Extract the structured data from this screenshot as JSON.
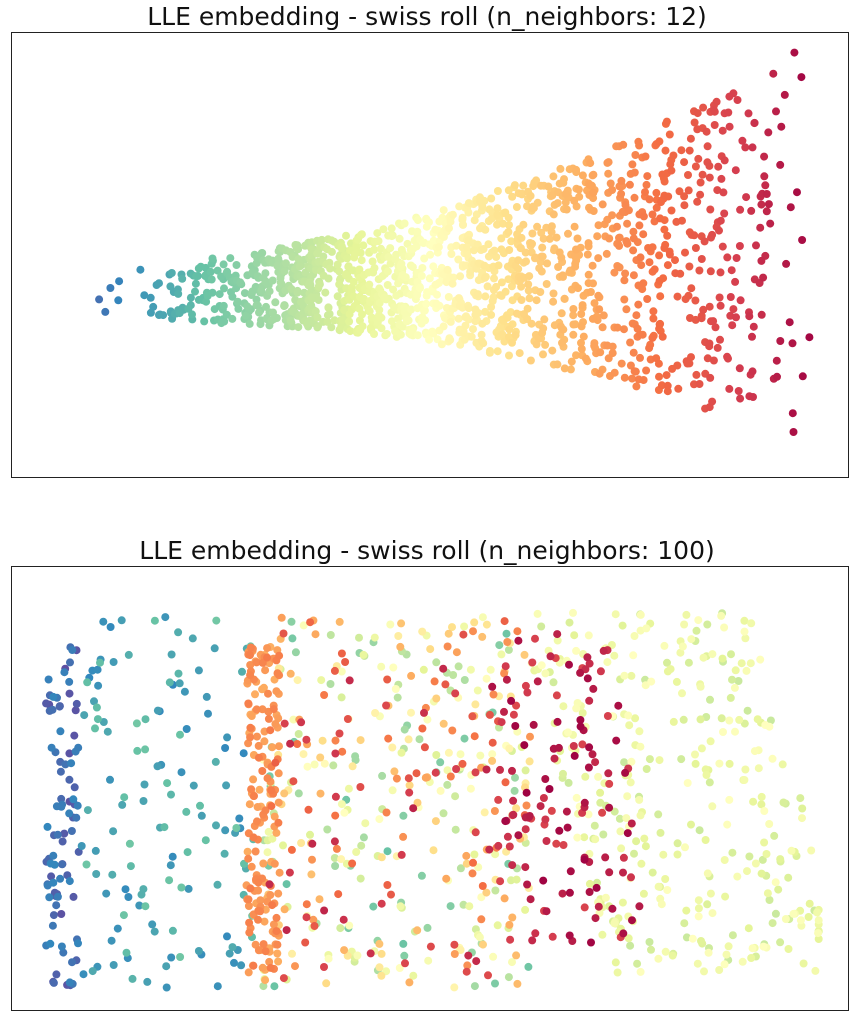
{
  "colormap": [
    "#5e4fa2",
    "#3288bd",
    "#66c2a5",
    "#abdda4",
    "#e6f598",
    "#ffffbf",
    "#fee08b",
    "#fdae61",
    "#f46d43",
    "#d53e4f",
    "#9e0142"
  ],
  "point_radius": 4,
  "chart_data": [
    {
      "type": "scatter",
      "title": "LLE embedding - swiss roll (n_neighbors: 12)",
      "xlabel": "",
      "ylabel": "",
      "xticks": false,
      "yticks": false,
      "grid": false,
      "color_scale": "spectral",
      "xlim": [
        0,
        1
      ],
      "ylim": [
        0,
        1
      ],
      "shape": "fan",
      "n_points": 1500,
      "seed": 12,
      "x_start": 0.045,
      "x_end": 0.96,
      "y_center_start": 0.41,
      "y_center_end": 0.52,
      "halfwidth_start": 0.06,
      "halfwidth_end": 0.46,
      "color_order": "x"
    },
    {
      "type": "scatter",
      "title": "LLE embedding - swiss roll (n_neighbors: 100)",
      "xlabel": "",
      "ylabel": "",
      "xticks": false,
      "yticks": false,
      "grid": false,
      "color_scale": "spectral",
      "xlim": [
        0,
        1
      ],
      "ylim": [
        0,
        1
      ],
      "shape": "folded",
      "n_points": 1500,
      "seed": 100,
      "color_order": "bands"
    }
  ]
}
